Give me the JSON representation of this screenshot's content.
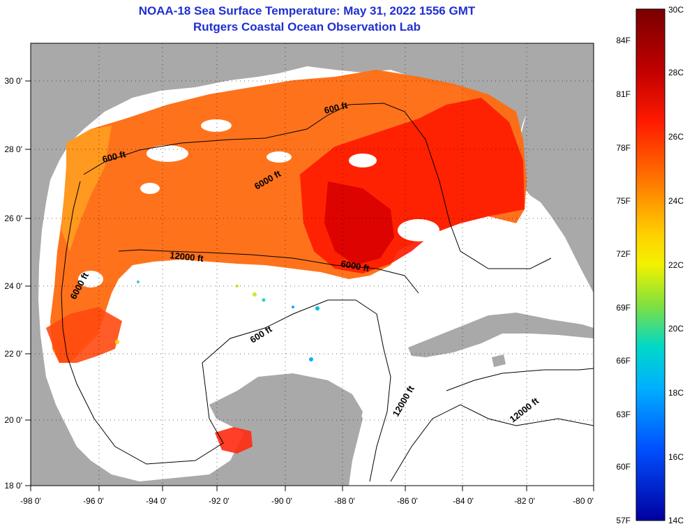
{
  "header": {
    "title": "NOAA-18 Sea Surface Temperature:  May 31, 2022 1556 GMT",
    "subtitle": "Rutgers Coastal Ocean Observation Lab"
  },
  "axes": {
    "longitude_labels": [
      "-98 0'",
      "-96 0'",
      "-94 0'",
      "-92 0'",
      "-90 0'",
      "-88 0'",
      "-86 0'",
      "-84 0'",
      "-82 0'",
      "-80 0'"
    ],
    "latitude_labels": [
      "30 0'",
      "28 0'",
      "26 0'",
      "24 0'",
      "22 0'",
      "20 0'",
      "18 0'"
    ]
  },
  "contours": {
    "labels": [
      "600 ft",
      "600 ft",
      "6000 ft",
      "12000 ft",
      "6000 ft",
      "6000 ft",
      "600 ft",
      "12000 ft",
      "12000 ft"
    ]
  },
  "colorbar": {
    "fahrenheit_labels": [
      "84F",
      "81F",
      "78F",
      "75F",
      "72F",
      "69F",
      "66F",
      "63F",
      "60F",
      "57F"
    ],
    "celsius_labels": [
      "30C",
      "28C",
      "26C",
      "24C",
      "22C",
      "20C",
      "18C",
      "16C",
      "14C"
    ],
    "gradient_colors": [
      "#7a0000",
      "#c00000",
      "#ff1a00",
      "#ff7a00",
      "#ffd000",
      "#f2f200",
      "#80e040",
      "#00d8c8",
      "#00b0ff",
      "#0050ff",
      "#0000a0"
    ]
  },
  "colors": {
    "title": "#1f2fd0",
    "land": "#a9a9a9",
    "water_no_data": "#ffffff"
  }
}
